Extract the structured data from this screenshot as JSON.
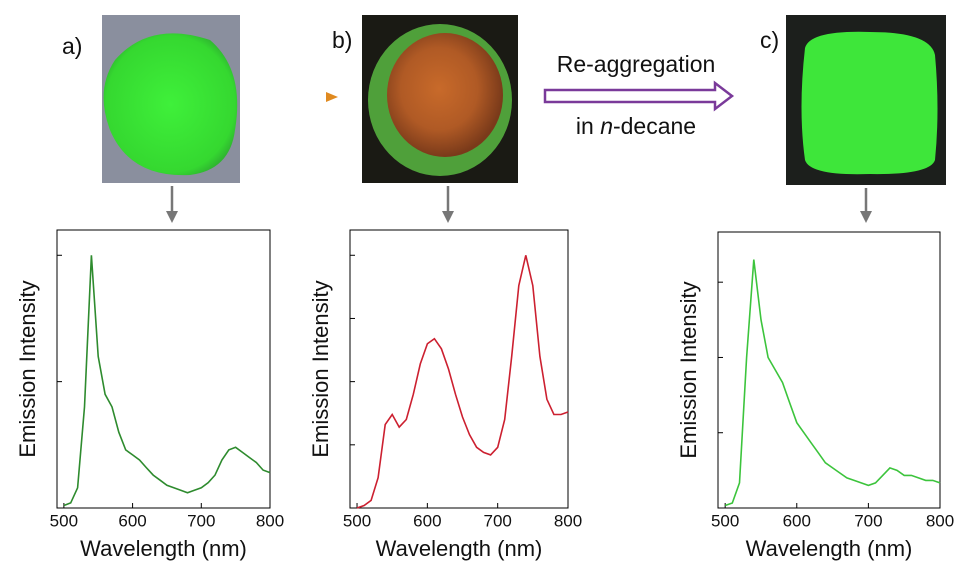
{
  "chart_data": [
    {
      "type": "line",
      "panel_label": "a)",
      "x_label": "Wavelength (nm)",
      "y_label": "Emission Intensity",
      "x": [
        500,
        510,
        520,
        530,
        540,
        550,
        560,
        570,
        580,
        590,
        600,
        610,
        620,
        630,
        640,
        650,
        660,
        670,
        680,
        690,
        700,
        710,
        720,
        730,
        740,
        750,
        760,
        770,
        780,
        790,
        800
      ],
      "series": [
        {
          "color": "#2e8b2e",
          "values": [
            0.01,
            0.02,
            0.08,
            0.4,
            1.0,
            0.6,
            0.45,
            0.4,
            0.3,
            0.23,
            0.21,
            0.19,
            0.16,
            0.13,
            0.11,
            0.09,
            0.08,
            0.07,
            0.06,
            0.07,
            0.08,
            0.1,
            0.13,
            0.19,
            0.23,
            0.24,
            0.22,
            0.2,
            0.18,
            0.15,
            0.14
          ]
        }
      ],
      "xlim": [
        490,
        800
      ],
      "xticks": [
        500,
        600,
        700,
        800
      ],
      "ylim": [
        0,
        1.1
      ],
      "yticks": [
        0,
        0.5,
        1
      ]
    },
    {
      "type": "line",
      "panel_label": "b)",
      "x_label": "Wavelength (nm)",
      "y_label": "Emission Intensity",
      "x": [
        500,
        510,
        520,
        530,
        540,
        550,
        560,
        570,
        580,
        590,
        600,
        610,
        620,
        630,
        640,
        650,
        660,
        670,
        680,
        690,
        700,
        710,
        720,
        730,
        740,
        750,
        760,
        770,
        780,
        790,
        800
      ],
      "series": [
        {
          "color": "#cc2030",
          "values": [
            0,
            0.01,
            0.03,
            0.12,
            0.33,
            0.37,
            0.32,
            0.35,
            0.45,
            0.57,
            0.65,
            0.67,
            0.63,
            0.55,
            0.45,
            0.36,
            0.29,
            0.24,
            0.22,
            0.21,
            0.24,
            0.35,
            0.6,
            0.88,
            1.0,
            0.88,
            0.6,
            0.43,
            0.37,
            0.37,
            0.38
          ]
        }
      ],
      "xlim": [
        490,
        800
      ],
      "xticks": [
        500,
        600,
        700,
        800
      ],
      "ylim": [
        0,
        1.1
      ],
      "yticks": [
        0,
        0.25,
        0.5,
        0.75,
        1
      ]
    },
    {
      "type": "line",
      "panel_label": "c)",
      "x_label": "Wavelength (nm)",
      "y_label": "Emission Intensity",
      "x": [
        500,
        510,
        520,
        530,
        540,
        550,
        560,
        570,
        580,
        590,
        600,
        610,
        620,
        630,
        640,
        650,
        660,
        670,
        680,
        690,
        700,
        710,
        720,
        730,
        740,
        750,
        760,
        770,
        780,
        790,
        800
      ],
      "series": [
        {
          "color": "#3cc43c",
          "values": [
            0.01,
            0.02,
            0.1,
            0.6,
            0.99,
            0.75,
            0.6,
            0.55,
            0.5,
            0.42,
            0.34,
            0.3,
            0.26,
            0.22,
            0.18,
            0.16,
            0.14,
            0.12,
            0.11,
            0.1,
            0.09,
            0.1,
            0.13,
            0.16,
            0.15,
            0.13,
            0.13,
            0.12,
            0.11,
            0.11,
            0.1
          ]
        }
      ],
      "xlim": [
        490,
        800
      ],
      "xticks": [
        500,
        600,
        700,
        800
      ],
      "ylim": [
        0,
        1.1
      ],
      "yticks": [
        0,
        0.3,
        0.6,
        0.9
      ]
    }
  ],
  "arrow_label": {
    "line1": "Re-aggregation",
    "line2_before": "in ",
    "line2_italic": "n",
    "line2_after": "-decane"
  }
}
